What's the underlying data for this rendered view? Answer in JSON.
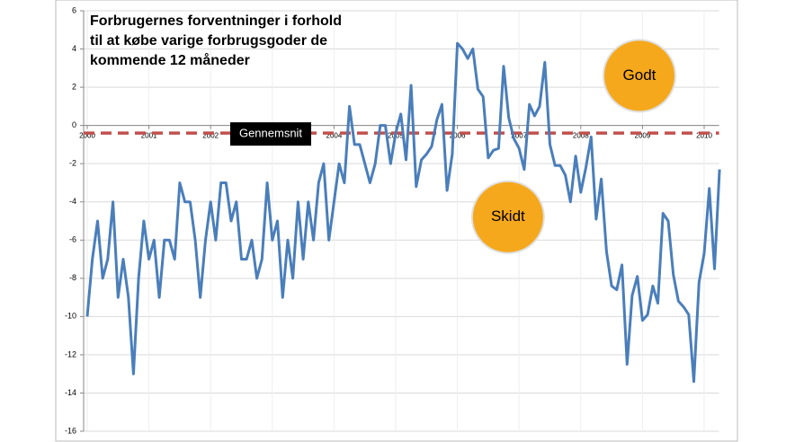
{
  "chart_data": {
    "type": "line",
    "title_lines": [
      "Forbrugernes forventninger i forhold",
      "til at købe varige forbrugsgoder de",
      "kommende 12 måneder"
    ],
    "x": [
      2000,
      2000.083,
      2000.167,
      2000.25,
      2000.333,
      2000.417,
      2000.5,
      2000.583,
      2000.667,
      2000.75,
      2000.833,
      2000.917,
      2001,
      2001.083,
      2001.167,
      2001.25,
      2001.333,
      2001.417,
      2001.5,
      2001.583,
      2001.667,
      2001.75,
      2001.833,
      2001.917,
      2002,
      2002.083,
      2002.167,
      2002.25,
      2002.333,
      2002.417,
      2002.5,
      2002.583,
      2002.667,
      2002.75,
      2002.833,
      2002.917,
      2003,
      2003.083,
      2003.167,
      2003.25,
      2003.333,
      2003.417,
      2003.5,
      2003.583,
      2003.667,
      2003.75,
      2003.833,
      2003.917,
      2004,
      2004.083,
      2004.167,
      2004.25,
      2004.333,
      2004.417,
      2004.5,
      2004.583,
      2004.667,
      2004.75,
      2004.833,
      2004.917,
      2005,
      2005.083,
      2005.167,
      2005.25,
      2005.333,
      2005.417,
      2005.5,
      2005.583,
      2005.667,
      2005.75,
      2005.833,
      2005.917,
      2006,
      2006.083,
      2006.167,
      2006.25,
      2006.333,
      2006.417,
      2006.5,
      2006.583,
      2006.667,
      2006.75,
      2006.833,
      2006.917,
      2007,
      2007.083,
      2007.167,
      2007.25,
      2007.333,
      2007.417,
      2007.5,
      2007.583,
      2007.667,
      2007.75,
      2007.833,
      2007.917,
      2008,
      2008.083,
      2008.167,
      2008.25,
      2008.333,
      2008.417,
      2008.5,
      2008.583,
      2008.667,
      2008.75,
      2008.833,
      2008.917,
      2009,
      2009.083,
      2009.167,
      2009.25,
      2009.333,
      2009.417,
      2009.5,
      2009.583,
      2009.667,
      2009.75,
      2009.833,
      2009.917,
      2010,
      2010.083,
      2010.167,
      2010.25
    ],
    "series": [
      {
        "color": "#4a7ebb",
        "values": [
          -10,
          -7,
          -5,
          -8,
          -7,
          -4,
          -9,
          -7,
          -9,
          -13,
          -8,
          -5,
          -7,
          -6,
          -9,
          -6,
          -6,
          -7,
          -3,
          -4,
          -4,
          -6,
          -9,
          -6,
          -4,
          -6,
          -3,
          -3,
          -5,
          -4,
          -7,
          -7,
          -6,
          -8,
          -7,
          -3,
          -6,
          -5,
          -9,
          -6,
          -8,
          -4,
          -7,
          -4,
          -6,
          -3,
          -2,
          -6,
          -4,
          -2,
          -3,
          1,
          -1,
          -1,
          -2,
          -3,
          -2,
          0,
          0,
          -2,
          -0.4,
          0.6,
          -1.8,
          2.1,
          -3.2,
          -1.8,
          -1.5,
          -1.1,
          0.3,
          1.1,
          -3.4,
          -1.5,
          4.3,
          4.0,
          3.5,
          4.0,
          1.9,
          1.5,
          -1.7,
          -1.3,
          -1.2,
          3.1,
          0.4,
          -0.7,
          -1.2,
          -2.3,
          1.1,
          0.5,
          1.0,
          3.3,
          -1.0,
          -2.1,
          -2.1,
          -2.6,
          -4.0,
          -1.6,
          -3.5,
          -2.2,
          -0.6,
          -4.9,
          -2.8,
          -6.6,
          -8.4,
          -8.6,
          -7.3,
          -12.5,
          -8.9,
          -7.9,
          -10.2,
          -9.9,
          -8.4,
          -9.3,
          -4.6,
          -5.0,
          -7.8,
          -9.2,
          -9.5,
          -9.9,
          -13.4,
          -8.2,
          -6.7,
          -3.3,
          -7.5,
          -2.3
        ]
      }
    ],
    "reference_line": {
      "label": "Gennemsnit",
      "value": -0.4,
      "color": "#c0504d"
    },
    "annotations": [
      {
        "text": "Godt",
        "x": 2008.95,
        "y": 2.6,
        "color": "#f5a81c"
      },
      {
        "text": "Skidt",
        "x": 2006.82,
        "y": -4.8,
        "color": "#f5a81c"
      }
    ],
    "xlim": [
      2000,
      2010.3
    ],
    "xticks": [
      2000,
      2001,
      2002,
      2003,
      2004,
      2005,
      2006,
      2007,
      2008,
      2009,
      2010
    ],
    "ylim": [
      -16,
      6
    ],
    "yticks": [
      -16,
      -14,
      -12,
      -10,
      -8,
      -6,
      -4,
      -2,
      0,
      2,
      4,
      6
    ],
    "grid": true
  }
}
